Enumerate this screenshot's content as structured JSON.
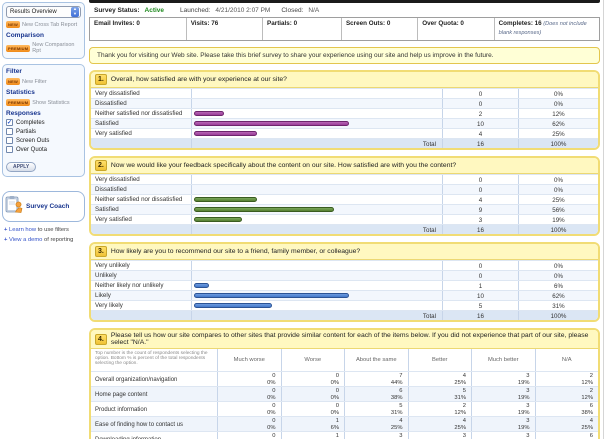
{
  "colors": {
    "status_active": "#1f8a1f",
    "panel_border": "#f1dc74",
    "q1_bar_fill": "#9a3d98",
    "q1_bar_border": "#6e256d",
    "q2_bar_fill": "#567f31",
    "q2_bar_border": "#3a5c20",
    "q3_bar_fill": "#4478c9",
    "q3_bar_border": "#2c5496",
    "badge_orange": "#f08a18"
  },
  "sidebar": {
    "report_select": "Results Overview",
    "cross_tab_badge": "NEW",
    "cross_tab_link": "New Cross Tab Report",
    "comparison_heading": "Comparison",
    "comparison_badge": "PREMIUM",
    "comparison_link": "New Comparison Rpt",
    "filter_heading": "Filter",
    "filter_badge": "NEW",
    "filter_link": "New Filter",
    "statistics_heading": "Statistics",
    "statistics_badge": "PREMIUM",
    "statistics_link": "Show Statistics",
    "responses_heading": "Responses",
    "response_options": [
      {
        "label": "Completes",
        "checked": true
      },
      {
        "label": "Partials",
        "checked": false
      },
      {
        "label": "Screen Outs",
        "checked": false
      },
      {
        "label": "Over Quota",
        "checked": false
      }
    ],
    "apply_label": "APPLY",
    "coach_title": "Survey Coach",
    "coach_links": [
      {
        "prefix": "+",
        "link": "Learn how",
        "rest": " to use filters"
      },
      {
        "prefix": "+",
        "link": "View a demo",
        "rest": " of reporting"
      }
    ]
  },
  "header": {
    "status_label": "Survey Status:",
    "status_value": "Active",
    "launched_label": "Launched:",
    "launched_value": "4/21/2010 2:07 PM",
    "closed_label": "Closed:",
    "closed_value": "N/A"
  },
  "stats": {
    "cells": [
      {
        "key": "email-invites",
        "label": "Email Invites:",
        "value": "0"
      },
      {
        "key": "visits",
        "label": "Visits:",
        "value": "76"
      },
      {
        "key": "partials",
        "label": "Partials:",
        "value": "0"
      },
      {
        "key": "screen-outs",
        "label": "Screen Outs:",
        "value": "0"
      },
      {
        "key": "over-quota",
        "label": "Over Quota:",
        "value": "0"
      },
      {
        "key": "completes",
        "label": "Completes:",
        "value": "16",
        "note": "(Does not include blank responses)"
      }
    ]
  },
  "intro_banner": "Thank you for visiting our Web site. Please take this brief survey to share your experience using our site and help us improve in the future.",
  "questions": [
    {
      "number": "1.",
      "text": "Overall, how satisfied are with your experience at our site?",
      "type": "bar",
      "bar_fill": "#9a3d98",
      "bar_fill_light": "#b766b5",
      "bar_border": "#6e256d",
      "rows": [
        {
          "label": "Very dissatisfied",
          "count": "0",
          "pct": "0%",
          "pct_num": 0
        },
        {
          "label": "Dissatisfied",
          "count": "0",
          "pct": "0%",
          "pct_num": 0
        },
        {
          "label": "Neither satisfied nor dissatisfied",
          "count": "2",
          "pct": "12%",
          "pct_num": 12
        },
        {
          "label": "Satisfied",
          "count": "10",
          "pct": "62%",
          "pct_num": 62
        },
        {
          "label": "Very satisfied",
          "count": "4",
          "pct": "25%",
          "pct_num": 25
        }
      ],
      "total_label": "Total",
      "total_count": "16",
      "total_pct": "100%"
    },
    {
      "number": "2.",
      "text": "Now we would like your feedback specifically about the content on our site.  How satisfied are with you the content?",
      "type": "bar",
      "bar_fill": "#567f31",
      "bar_fill_light": "#7aa85b",
      "bar_border": "#3a5c20",
      "rows": [
        {
          "label": "Very dissatisfied",
          "count": "0",
          "pct": "0%",
          "pct_num": 0
        },
        {
          "label": "Dissatisfied",
          "count": "0",
          "pct": "0%",
          "pct_num": 0
        },
        {
          "label": "Neither satisfied nor dissatisfied",
          "count": "4",
          "pct": "25%",
          "pct_num": 25
        },
        {
          "label": "Satisfied",
          "count": "9",
          "pct": "56%",
          "pct_num": 56
        },
        {
          "label": "Very satisfied",
          "count": "3",
          "pct": "19%",
          "pct_num": 19
        }
      ],
      "total_label": "Total",
      "total_count": "16",
      "total_pct": "100%"
    },
    {
      "number": "3.",
      "text": "How likely are you to recommend our site to a friend, family member, or colleague?",
      "type": "bar",
      "bar_fill": "#4478c9",
      "bar_fill_light": "#6d9be0",
      "bar_border": "#2c5496",
      "rows": [
        {
          "label": "Very unlikely",
          "count": "0",
          "pct": "0%",
          "pct_num": 0
        },
        {
          "label": "Unlikely",
          "count": "0",
          "pct": "0%",
          "pct_num": 0
        },
        {
          "label": "Neither likely nor unlikely",
          "count": "1",
          "pct": "6%",
          "pct_num": 6
        },
        {
          "label": "Likely",
          "count": "10",
          "pct": "62%",
          "pct_num": 62
        },
        {
          "label": "Very likely",
          "count": "5",
          "pct": "31%",
          "pct_num": 31
        }
      ],
      "total_label": "Total",
      "total_count": "16",
      "total_pct": "100%"
    },
    {
      "number": "4.",
      "text": "Please tell us how our site compares to other sites that provide similar content for each of the items below.  If you did not experience that part of our site, please select \"N/A.\"",
      "type": "matrix",
      "note": "Top number is the count of respondents selecting the option. Bottom % is percent of the total respondents selecting the option.",
      "columns": [
        "Much worse",
        "Worse",
        "About the same",
        "Better",
        "Much better",
        "N/A"
      ],
      "matrix_rows": [
        {
          "label": "Overall organization/navigation",
          "cells": [
            [
              "0",
              "0%"
            ],
            [
              "0",
              "0%"
            ],
            [
              "7",
              "44%"
            ],
            [
              "4",
              "25%"
            ],
            [
              "3",
              "19%"
            ],
            [
              "2",
              "12%"
            ]
          ]
        },
        {
          "label": "Home page content",
          "cells": [
            [
              "0",
              "0%"
            ],
            [
              "0",
              "0%"
            ],
            [
              "6",
              "38%"
            ],
            [
              "5",
              "31%"
            ],
            [
              "3",
              "19%"
            ],
            [
              "2",
              "12%"
            ]
          ]
        },
        {
          "label": "Product information",
          "cells": [
            [
              "0",
              "0%"
            ],
            [
              "0",
              "0%"
            ],
            [
              "5",
              "31%"
            ],
            [
              "2",
              "12%"
            ],
            [
              "3",
              "19%"
            ],
            [
              "6",
              "38%"
            ]
          ]
        },
        {
          "label": "Ease of finding how to contact us",
          "cells": [
            [
              "0",
              "0%"
            ],
            [
              "1",
              "6%"
            ],
            [
              "4",
              "25%"
            ],
            [
              "4",
              "25%"
            ],
            [
              "3",
              "19%"
            ],
            [
              "4",
              "25%"
            ]
          ]
        },
        {
          "label": "Downloading information",
          "cells": [
            [
              "0",
              "0%"
            ],
            [
              "1",
              "6%"
            ],
            [
              "3",
              "19%"
            ],
            [
              "3",
              "19%"
            ],
            [
              "3",
              "19%"
            ],
            [
              "6",
              "38%"
            ]
          ]
        }
      ]
    }
  ]
}
